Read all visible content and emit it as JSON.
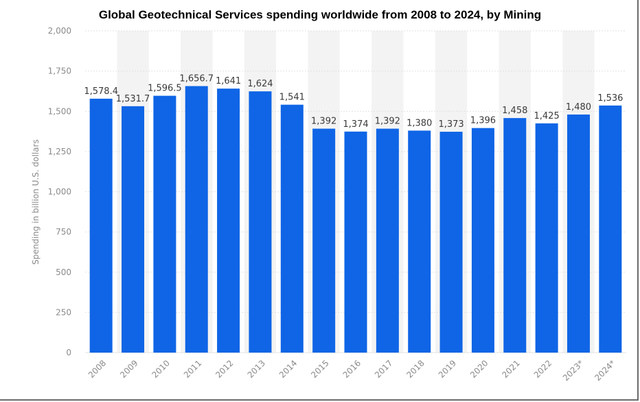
{
  "chart_data": {
    "type": "bar",
    "title": "Global Geotechnical Services spending worldwide from 2008 to 2024, by Mining",
    "xlabel": "",
    "ylabel": "Spending in billion U.S. dollars",
    "categories": [
      "2008",
      "2009",
      "2010",
      "2011",
      "2012",
      "2013",
      "2014",
      "2015",
      "2016",
      "2017",
      "2018",
      "2019",
      "2020",
      "2021",
      "2022",
      "2023*",
      "2024*"
    ],
    "values": [
      1578.4,
      1531.7,
      1596.5,
      1656.7,
      1641,
      1624,
      1541,
      1392,
      1374,
      1392,
      1380,
      1373,
      1396,
      1458,
      1425,
      1480,
      1536
    ],
    "value_labels": [
      "1,578.4",
      "1,531.7",
      "1,596.5",
      "1,656.7",
      "1,641",
      "1,624",
      "1,541",
      "1,392",
      "1,374",
      "1,392",
      "1,380",
      "1,373",
      "1,396",
      "1,458",
      "1,425",
      "1,480",
      "1,536"
    ],
    "ylim": [
      0,
      2000
    ],
    "yticks": [
      0,
      250,
      500,
      750,
      1000,
      1250,
      1500,
      1750,
      2000
    ],
    "ytick_labels": [
      "0",
      "250",
      "500",
      "750",
      "1,000",
      "1,250",
      "1,500",
      "1,750",
      "2,000"
    ],
    "grid": true,
    "bar_color": "#0f65e6",
    "band_color": "#f3f3f3",
    "grid_color": "#e2e2e2",
    "legend": "none"
  }
}
